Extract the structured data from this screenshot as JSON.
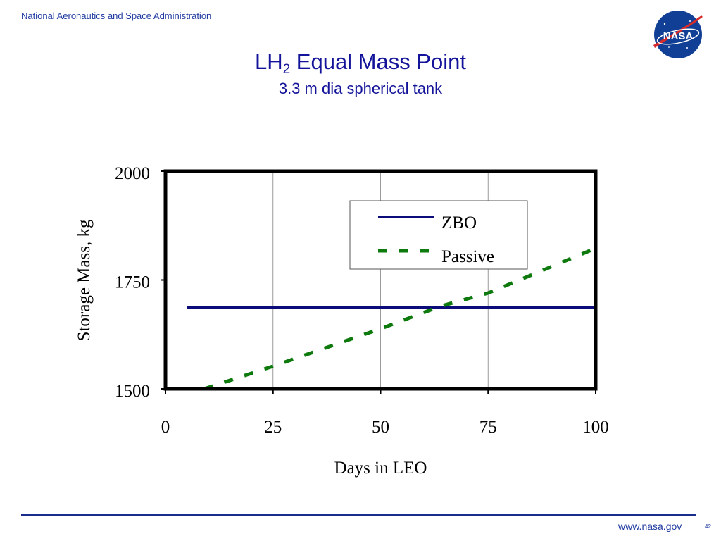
{
  "header": {
    "organization": "National Aeronautics and Space Administration",
    "logo_text": "NASA",
    "title_main": "LH",
    "title_sub": "2",
    "title_rest": " Equal Mass Point",
    "subtitle": "3.3 m dia spherical tank"
  },
  "footer": {
    "url": "www.nasa.gov",
    "page": "42"
  },
  "colors": {
    "text": "#14149a",
    "zbo": "#0b0b7a",
    "passive": "#0e7a0e",
    "rule": "#1a2c8c",
    "logo_blue": "#123f96",
    "logo_red": "#d62b2b"
  },
  "chart_data": {
    "type": "line",
    "xlabel": "Days in LEO",
    "ylabel": "Storage Mass, kg",
    "xlim": [
      0,
      100
    ],
    "ylim": [
      1500,
      2000
    ],
    "xticks": [
      0,
      25,
      50,
      75,
      100
    ],
    "yticks": [
      1500,
      1750,
      2000
    ],
    "grid": "vertical",
    "legend_position": "top-right",
    "series": [
      {
        "name": "ZBO",
        "style": "solid",
        "color": "#0b0b7a",
        "x": [
          5,
          100
        ],
        "y": [
          1686,
          1686
        ]
      },
      {
        "name": "Passive",
        "style": "dashed",
        "color": "#0e7a0e",
        "x": [
          9,
          25,
          50,
          64,
          75,
          100
        ],
        "y": [
          1500,
          1552,
          1638,
          1690,
          1720,
          1823
        ]
      }
    ]
  }
}
